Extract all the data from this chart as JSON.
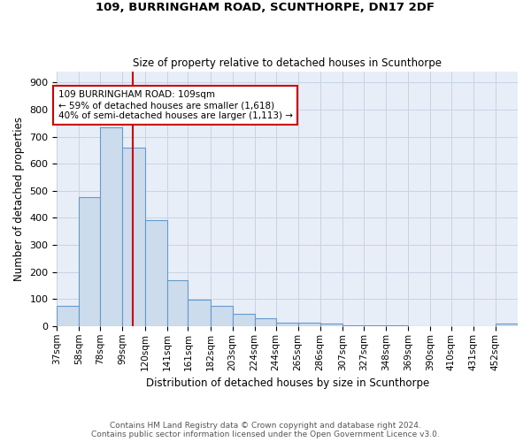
{
  "title1": "109, BURRINGHAM ROAD, SCUNTHORPE, DN17 2DF",
  "title2": "Size of property relative to detached houses in Scunthorpe",
  "xlabel": "Distribution of detached houses by size in Scunthorpe",
  "ylabel": "Number of detached properties",
  "footnote1": "Contains HM Land Registry data © Crown copyright and database right 2024.",
  "footnote2": "Contains public sector information licensed under the Open Government Licence v3.0.",
  "bar_labels": [
    "37sqm",
    "58sqm",
    "78sqm",
    "99sqm",
    "120sqm",
    "141sqm",
    "161sqm",
    "182sqm",
    "203sqm",
    "224sqm",
    "244sqm",
    "265sqm",
    "286sqm",
    "307sqm",
    "327sqm",
    "348sqm",
    "369sqm",
    "390sqm",
    "410sqm",
    "431sqm",
    "452sqm"
  ],
  "bar_values": [
    75,
    475,
    733,
    660,
    390,
    170,
    98,
    76,
    45,
    30,
    14,
    12,
    8,
    3,
    2,
    2,
    1,
    0,
    0,
    0,
    8
  ],
  "bar_color": "#ccdcec",
  "bar_edge_color": "#6699cc",
  "annotation_line_color": "#cc0000",
  "annotation_box_text": "109 BURRINGHAM ROAD: 109sqm\n← 59% of detached houses are smaller (1,618)\n40% of semi-detached houses are larger (1,113) →",
  "annotation_box_color": "#cc0000",
  "ylim": [
    0,
    940
  ],
  "yticks": [
    0,
    100,
    200,
    300,
    400,
    500,
    600,
    700,
    800,
    900
  ],
  "grid_color": "#c8d4e4",
  "bg_color": "#ffffff",
  "plot_bg_color": "#e8eef8"
}
